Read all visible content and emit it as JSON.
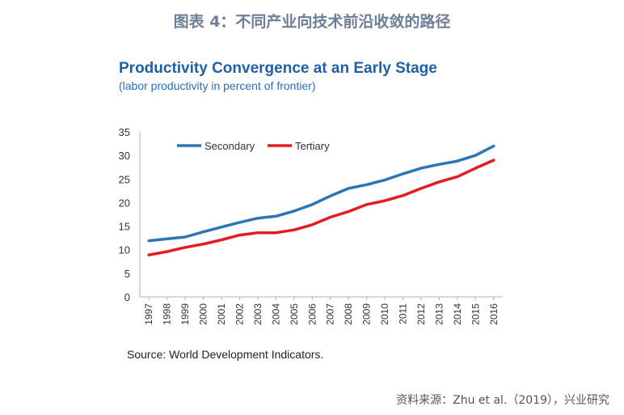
{
  "figure_title": "图表 4：不同产业向技术前沿收敛的路径",
  "source_note": "Source: World Development Indicators.",
  "attribution": "资料来源：Zhu et al.（2019），兴业研究",
  "chart_data": {
    "type": "line",
    "title": "Productivity Convergence at an Early Stage",
    "subtitle": "(labor productivity in percent of frontier)",
    "xlabel": "",
    "ylabel": "",
    "x": [
      "1997",
      "1998",
      "1999",
      "2000",
      "2001",
      "2002",
      "2003",
      "2004",
      "2005",
      "2006",
      "2007",
      "2008",
      "2009",
      "2010",
      "2011",
      "2012",
      "2013",
      "2014",
      "2015",
      "2016"
    ],
    "ylim": [
      0,
      35
    ],
    "yticks": [
      0,
      5,
      10,
      15,
      20,
      25,
      30,
      35
    ],
    "grid": false,
    "legend_position": "top-left",
    "series": [
      {
        "name": "Secondary",
        "color": "#2e75b6",
        "values": [
          11.9,
          12.3,
          12.7,
          13.8,
          14.8,
          15.8,
          16.7,
          17.1,
          18.2,
          19.6,
          21.4,
          23.0,
          23.8,
          24.8,
          26.1,
          27.3,
          28.1,
          28.8,
          30.0,
          32.0
        ]
      },
      {
        "name": "Tertiary",
        "color": "#e31b23",
        "values": [
          8.9,
          9.6,
          10.5,
          11.2,
          12.1,
          13.1,
          13.6,
          13.6,
          14.2,
          15.3,
          16.9,
          18.1,
          19.6,
          20.4,
          21.5,
          23.0,
          24.4,
          25.5,
          27.3,
          29.0
        ]
      }
    ]
  }
}
